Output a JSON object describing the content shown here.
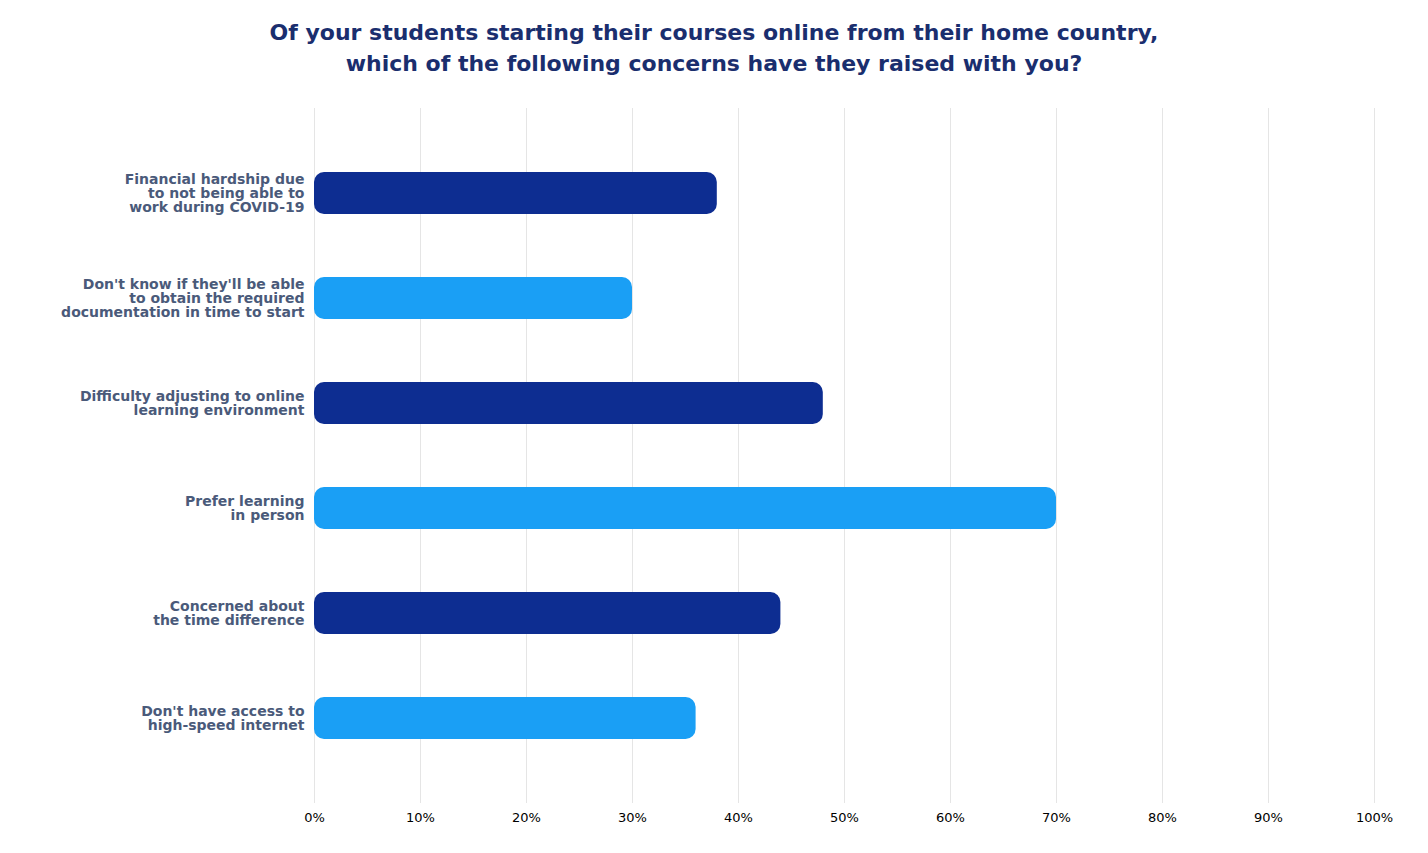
{
  "chart_data": {
    "type": "bar",
    "orientation": "horizontal",
    "title": "Of your students starting their courses online from their home country,\nwhich of the following concerns have they raised with you?",
    "categories": [
      "Don't have access to\nhigh-speed internet",
      "Concerned about\nthe time difference",
      "Prefer learning\nin person",
      "Difficulty adjusting to online\nlearning environment",
      "Don't know if they'll be able\nto obtain the required\ndocumentation in time to start",
      "Financial hardship due\nto not being able to\nwork during COVID-19"
    ],
    "values": [
      36,
      44,
      70,
      48,
      30,
      38
    ],
    "colors": [
      "#1a9ff5",
      "#0d2d91",
      "#1a9ff5",
      "#0d2d91",
      "#1a9ff5",
      "#0d2d91"
    ],
    "xlim": [
      0,
      100
    ],
    "xticks": [
      {
        "value": 0,
        "label": "0%"
      },
      {
        "value": 10,
        "label": "10%"
      },
      {
        "value": 20,
        "label": "20%"
      },
      {
        "value": 30,
        "label": "30%"
      },
      {
        "value": 40,
        "label": "40%"
      },
      {
        "value": 50,
        "label": "50%"
      },
      {
        "value": 60,
        "label": "60%"
      },
      {
        "value": 70,
        "label": "70%"
      },
      {
        "value": 80,
        "label": "80%"
      },
      {
        "value": 90,
        "label": "90%"
      },
      {
        "value": 100,
        "label": "100%"
      }
    ],
    "grid": true
  }
}
